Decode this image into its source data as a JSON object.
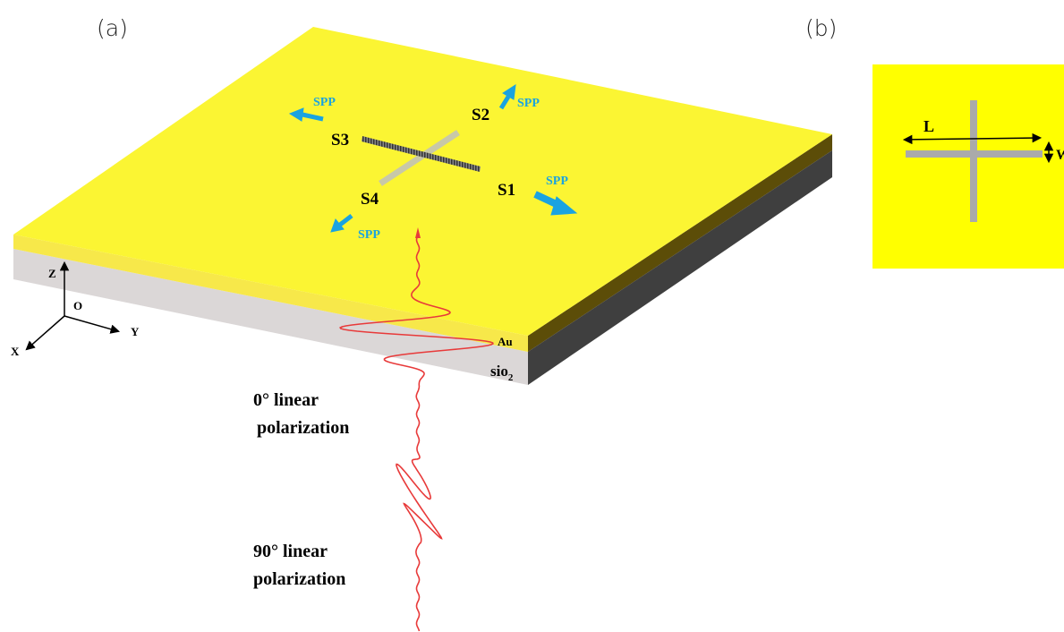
{
  "panels": {
    "a": "(a)",
    "b": "(b)"
  },
  "labels": {
    "spp": [
      "SPP",
      "SPP",
      "SPP",
      "SPP"
    ],
    "slits": [
      "S1",
      "S2",
      "S3",
      "S4"
    ],
    "axes": {
      "z": "Z",
      "o": "O",
      "y": "Y",
      "x": "X"
    },
    "au": "Au",
    "sio2": {
      "base": "sio",
      "sub": "2"
    }
  },
  "polarization": [
    {
      "line1": "0°  linear",
      "line2": "polarization"
    },
    {
      "line1": "90°  linear",
      "line2": "polarization"
    }
  ],
  "inset": {
    "length": "L",
    "width": "W"
  }
}
